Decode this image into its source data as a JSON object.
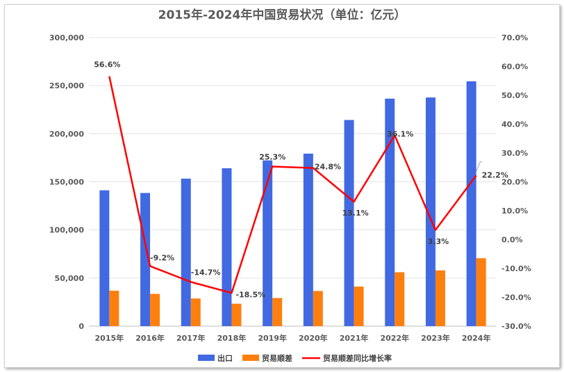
{
  "chart_data": {
    "type": "bar",
    "title": "2015年-2024年中国贸易状况（单位：亿元）",
    "categories": [
      "2015年",
      "2016年",
      "2017年",
      "2018年",
      "2019年",
      "2020年",
      "2021年",
      "2022年",
      "2023年",
      "2024年"
    ],
    "series": [
      {
        "name": "出口",
        "type": "bar",
        "axis": "left",
        "color": "#4169E1",
        "values": [
          141200,
          138400,
          153300,
          164100,
          172300,
          179300,
          214300,
          236500,
          237700,
          254500
        ]
      },
      {
        "name": "贸易顺差",
        "type": "bar",
        "axis": "left",
        "color": "#FF7F0E",
        "values": [
          36800,
          33500,
          28700,
          23300,
          29200,
          36500,
          41100,
          56000,
          57900,
          70600
        ]
      },
      {
        "name": "贸易顺差同比增长率",
        "type": "line",
        "axis": "right",
        "color": "#FF0000",
        "values": [
          56.6,
          -9.2,
          -14.7,
          -18.5,
          25.3,
          24.8,
          13.1,
          36.1,
          3.3,
          22.2
        ],
        "labels": [
          "56.6%",
          "-9.2%",
          "-14.7%",
          "-18.5%",
          "25.3%",
          "24.8%",
          "13.1%",
          "36.1%",
          "3.3%",
          "22.2%"
        ]
      }
    ],
    "y_left": {
      "ylim": [
        0,
        300000
      ],
      "ticks": [
        "0",
        "50,000",
        "100,000",
        "150,000",
        "200,000",
        "250,000",
        "300,000"
      ]
    },
    "y_right": {
      "ylim": [
        -30,
        70
      ],
      "ticks": [
        "-30.0%",
        "-20.0%",
        "-10.0%",
        "0.0%",
        "10.0%",
        "20.0%",
        "30.0%",
        "40.0%",
        "50.0%",
        "60.0%",
        "70.0%"
      ]
    },
    "grid": true,
    "legend": "bottom"
  }
}
